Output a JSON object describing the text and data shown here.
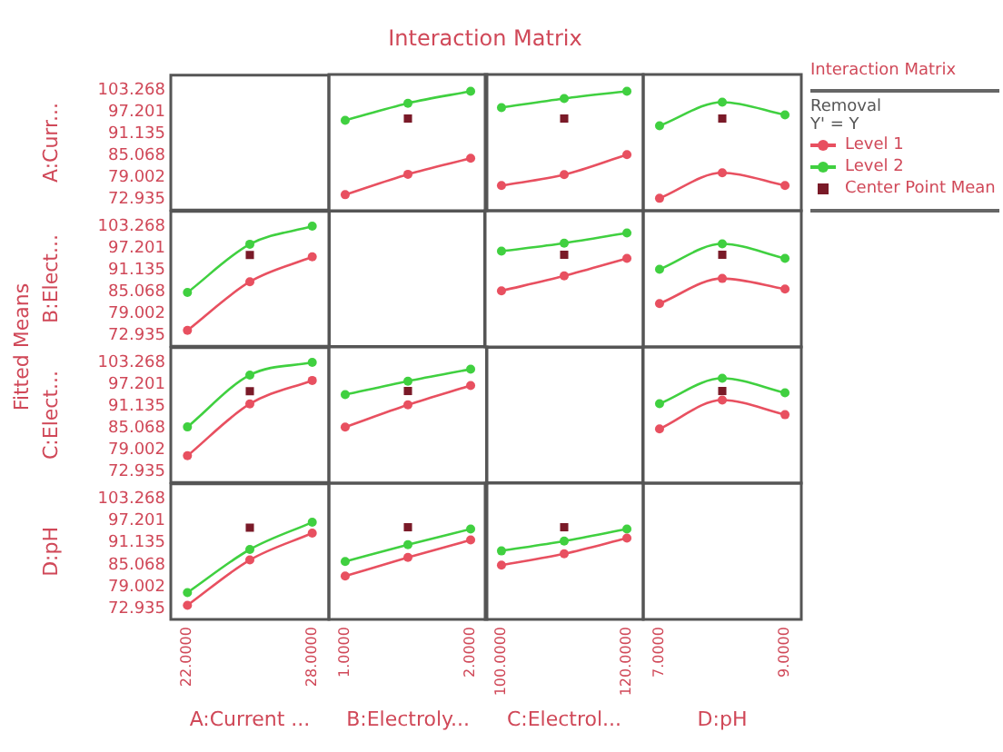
{
  "chart_data": [
    {
      "type": "line",
      "ylabel": "A:Curr...",
      "annotations": [
        "Fitted Means"
      ],
      "tick_labels": "y",
      "xlim": [
        21.2,
        28.8
      ],
      "ylim": [
        70,
        107.4
      ],
      "yticks": [
        72.935,
        79.002,
        85.068,
        91.135,
        97.201,
        103.268
      ]
    },
    {
      "type": "line",
      "tick_labels": false,
      "legend": "right",
      "legend_title": "Removal",
      "annotations": [
        "Interaction Matrix",
        "Y' = Y"
      ],
      "marker": "circle",
      "x": [
        1,
        1.5,
        2
      ],
      "xlim": [
        0.87,
        2.13
      ],
      "ylim": [
        70,
        107.4
      ],
      "series": [
        {
          "name": "Level 1",
          "color": "#e85060",
          "values": [
            74.4,
            80,
            84.4
          ]
        },
        {
          "name": "Level 2",
          "color": "#40d040",
          "values": [
            94.8,
            99.5,
            102.8
          ]
        },
        {
          "name": "Center Point Mean",
          "type": "scatter",
          "marker": "square",
          "color": "#7a1a28",
          "x": [
            1.5
          ],
          "values": [
            95.3
          ]
        }
      ]
    },
    {
      "type": "line",
      "title": "Interaction Matrix",
      "tick_labels": false,
      "marker": "circle",
      "x": [
        100,
        110,
        120
      ],
      "xlim": [
        97.4,
        122.6
      ],
      "ylim": [
        70,
        107.4
      ],
      "series": [
        {
          "color": "#e85060",
          "values": [
            76.9,
            79.9,
            85.4
          ]
        },
        {
          "color": "#40d040",
          "values": [
            98.3,
            100.8,
            102.8
          ]
        },
        {
          "type": "scatter",
          "marker": "square",
          "color": "#7a1a28",
          "x": [
            110
          ],
          "values": [
            95.3
          ]
        }
      ]
    },
    {
      "type": "line",
      "tick_labels": false,
      "marker": "circle",
      "x": [
        7,
        8,
        9
      ],
      "xlim": [
        6.74,
        9.26
      ],
      "ylim": [
        70,
        107.4
      ],
      "series": [
        {
          "color": "#e85060",
          "values": [
            73.4,
            80.4,
            76.9
          ]
        },
        {
          "color": "#40d040",
          "values": [
            93.3,
            99.8,
            96.3
          ]
        },
        {
          "type": "scatter",
          "marker": "square",
          "color": "#7a1a28",
          "x": [
            8
          ],
          "values": [
            95.3
          ]
        }
      ]
    },
    {
      "type": "line",
      "tick_labels": "y",
      "ylabel": "B:Elect...",
      "marker": "circle",
      "x": [
        22,
        25,
        28
      ],
      "xlim": [
        21.2,
        28.8
      ],
      "ylim": [
        70,
        107.4
      ],
      "yticks": [
        72.935,
        79.002,
        85.068,
        91.135,
        97.201,
        103.268
      ],
      "series": [
        {
          "color": "#e85060",
          "values": [
            74.4,
            87.9,
            94.8
          ]
        },
        {
          "color": "#40d040",
          "values": [
            84.9,
            98.3,
            103.3
          ]
        },
        {
          "type": "scatter",
          "marker": "square",
          "color": "#7a1a28",
          "x": [
            25
          ],
          "values": [
            95.3
          ]
        }
      ]
    },
    {
      "type": "other"
    },
    {
      "type": "line",
      "tick_labels": false,
      "marker": "circle",
      "x": [
        100,
        110,
        120
      ],
      "xlim": [
        97.4,
        122.6
      ],
      "ylim": [
        70,
        107.4
      ],
      "series": [
        {
          "color": "#e85060",
          "values": [
            85.4,
            89.5,
            94.3
          ]
        },
        {
          "color": "#40d040",
          "values": [
            96.3,
            98.5,
            101.3
          ]
        },
        {
          "type": "scatter",
          "marker": "square",
          "color": "#7a1a28",
          "x": [
            110
          ],
          "values": [
            95.3
          ]
        }
      ]
    },
    {
      "type": "line",
      "tick_labels": false,
      "marker": "circle",
      "x": [
        7,
        8,
        9
      ],
      "xlim": [
        6.74,
        9.26
      ],
      "ylim": [
        70,
        107.4
      ],
      "series": [
        {
          "color": "#e85060",
          "values": [
            81.9,
            88.8,
            85.9
          ]
        },
        {
          "color": "#40d040",
          "values": [
            91.3,
            98.3,
            94.3
          ]
        },
        {
          "type": "scatter",
          "marker": "square",
          "color": "#7a1a28",
          "x": [
            8
          ],
          "values": [
            95.3
          ]
        }
      ]
    },
    {
      "type": "line",
      "tick_labels": "y",
      "ylabel": "C:Elect...",
      "marker": "circle",
      "x": [
        22,
        25,
        28
      ],
      "xlim": [
        21.2,
        28.8
      ],
      "ylim": [
        70,
        107.4
      ],
      "yticks": [
        72.935,
        79.002,
        85.068,
        91.135,
        97.201,
        103.268
      ],
      "series": [
        {
          "color": "#e85060",
          "values": [
            77.4,
            91.8,
            98.3
          ]
        },
        {
          "color": "#40d040",
          "values": [
            85.4,
            99.8,
            103.3
          ]
        },
        {
          "type": "scatter",
          "marker": "square",
          "color": "#7a1a28",
          "x": [
            25
          ],
          "values": [
            95.3
          ]
        }
      ]
    },
    {
      "type": "line",
      "tick_labels": false,
      "marker": "circle",
      "x": [
        1,
        1.5,
        2
      ],
      "xlim": [
        0.87,
        2.13
      ],
      "ylim": [
        70,
        107.4
      ],
      "series": [
        {
          "color": "#e85060",
          "values": [
            85.4,
            91.5,
            96.8
          ]
        },
        {
          "color": "#40d040",
          "values": [
            94.3,
            98,
            101.3
          ]
        },
        {
          "type": "scatter",
          "marker": "square",
          "color": "#7a1a28",
          "x": [
            1.5
          ],
          "values": [
            95.3
          ]
        }
      ]
    },
    {
      "type": "other"
    },
    {
      "type": "line",
      "tick_labels": false,
      "marker": "circle",
      "x": [
        7,
        8,
        9
      ],
      "xlim": [
        6.74,
        9.26
      ],
      "ylim": [
        70,
        107.4
      ],
      "series": [
        {
          "color": "#e85060",
          "values": [
            84.9,
            92.8,
            88.8
          ]
        },
        {
          "color": "#40d040",
          "values": [
            91.8,
            98.8,
            94.8
          ]
        },
        {
          "type": "scatter",
          "marker": "square",
          "color": "#7a1a28",
          "x": [
            8
          ],
          "values": [
            95.3
          ]
        }
      ]
    },
    {
      "type": "line",
      "ylabel": "D:pH",
      "xlabel": "A:Current ...",
      "marker": "circle",
      "x": [
        22,
        25,
        28
      ],
      "xlim": [
        21.2,
        28.8
      ],
      "ylim": [
        70,
        107.4
      ],
      "yticks": [
        72.935,
        79.002,
        85.068,
        91.135,
        97.201,
        103.268
      ],
      "xticks": [
        {
          "value": 22,
          "label": "22.0000"
        },
        {
          "value": 28,
          "label": "28.0000"
        }
      ],
      "series": [
        {
          "color": "#e85060",
          "values": [
            73.9,
            86.4,
            93.8
          ]
        },
        {
          "color": "#40d040",
          "values": [
            77.4,
            89.3,
            96.8
          ]
        },
        {
          "type": "scatter",
          "marker": "square",
          "color": "#7a1a28",
          "x": [
            25
          ],
          "values": [
            95.3
          ]
        }
      ]
    },
    {
      "type": "line",
      "tick_labels": "x",
      "xlabel": "B:Electroly...",
      "marker": "circle",
      "x": [
        1,
        1.5,
        2
      ],
      "xlim": [
        0.87,
        2.13
      ],
      "ylim": [
        70,
        107.4
      ],
      "xticks": [
        {
          "value": 1,
          "label": "1.0000"
        },
        {
          "value": 2,
          "label": "2.0000"
        }
      ],
      "series": [
        {
          "color": "#e85060",
          "values": [
            81.9,
            87,
            91.8
          ]
        },
        {
          "color": "#40d040",
          "values": [
            85.9,
            90.5,
            94.8
          ]
        },
        {
          "type": "scatter",
          "marker": "square",
          "color": "#7a1a28",
          "x": [
            1.5
          ],
          "values": [
            95.3
          ]
        }
      ]
    },
    {
      "type": "line",
      "tick_labels": "x",
      "xlabel": "C:Electrol...",
      "marker": "circle",
      "x": [
        100,
        110,
        120
      ],
      "xlim": [
        97.4,
        122.6
      ],
      "ylim": [
        70,
        107.4
      ],
      "xticks": [
        {
          "value": 100,
          "label": "100.0000"
        },
        {
          "value": 120,
          "label": "120.0000"
        }
      ],
      "series": [
        {
          "color": "#e85060",
          "values": [
            84.9,
            88,
            92.3
          ]
        },
        {
          "color": "#40d040",
          "values": [
            88.8,
            91.5,
            94.8
          ]
        },
        {
          "type": "scatter",
          "marker": "square",
          "color": "#7a1a28",
          "x": [
            110
          ],
          "values": [
            95.3
          ]
        }
      ]
    },
    {
      "type": "line",
      "tick_labels": "x",
      "xlabel": "D:pH",
      "xlim": [
        6.74,
        9.26
      ],
      "ylim": [
        70,
        107.4
      ],
      "xticks": [
        {
          "value": 7,
          "label": "7.0000"
        },
        {
          "value": 9,
          "label": "9.0000"
        }
      ]
    }
  ]
}
